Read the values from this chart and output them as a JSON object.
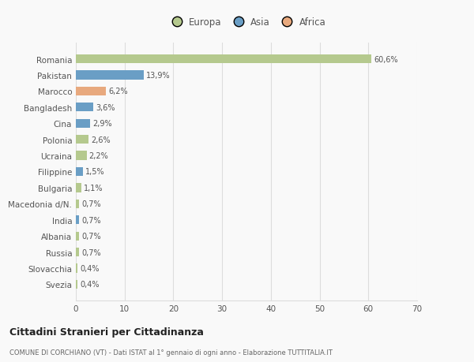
{
  "categories": [
    "Romania",
    "Pakistan",
    "Marocco",
    "Bangladesh",
    "Cina",
    "Polonia",
    "Ucraina",
    "Filippine",
    "Bulgaria",
    "Macedonia d/N.",
    "India",
    "Albania",
    "Russia",
    "Slovacchia",
    "Svezia"
  ],
  "values": [
    60.6,
    13.9,
    6.2,
    3.6,
    2.9,
    2.6,
    2.2,
    1.5,
    1.1,
    0.7,
    0.7,
    0.7,
    0.7,
    0.4,
    0.4
  ],
  "labels": [
    "60,6%",
    "13,9%",
    "6,2%",
    "3,6%",
    "2,9%",
    "2,6%",
    "2,2%",
    "1,5%",
    "1,1%",
    "0,7%",
    "0,7%",
    "0,7%",
    "0,7%",
    "0,4%",
    "0,4%"
  ],
  "colors": [
    "#b5c98e",
    "#6a9ec5",
    "#e8a97e",
    "#6a9ec5",
    "#6a9ec5",
    "#b5c98e",
    "#b5c98e",
    "#6a9ec5",
    "#b5c98e",
    "#b5c98e",
    "#6a9ec5",
    "#b5c98e",
    "#b5c98e",
    "#b5c98e",
    "#b5c98e"
  ],
  "legend": [
    {
      "label": "Europa",
      "color": "#b5c98e"
    },
    {
      "label": "Asia",
      "color": "#6a9ec5"
    },
    {
      "label": "Africa",
      "color": "#e8a97e"
    }
  ],
  "xlim": [
    0,
    70
  ],
  "xticks": [
    0,
    10,
    20,
    30,
    40,
    50,
    60,
    70
  ],
  "title": "Cittadini Stranieri per Cittadinanza",
  "subtitle": "COMUNE DI CORCHIANO (VT) - Dati ISTAT al 1° gennaio di ogni anno - Elaborazione TUTTITALIA.IT",
  "background_color": "#f9f9f9",
  "grid_color": "#dddddd",
  "bar_height": 0.55
}
